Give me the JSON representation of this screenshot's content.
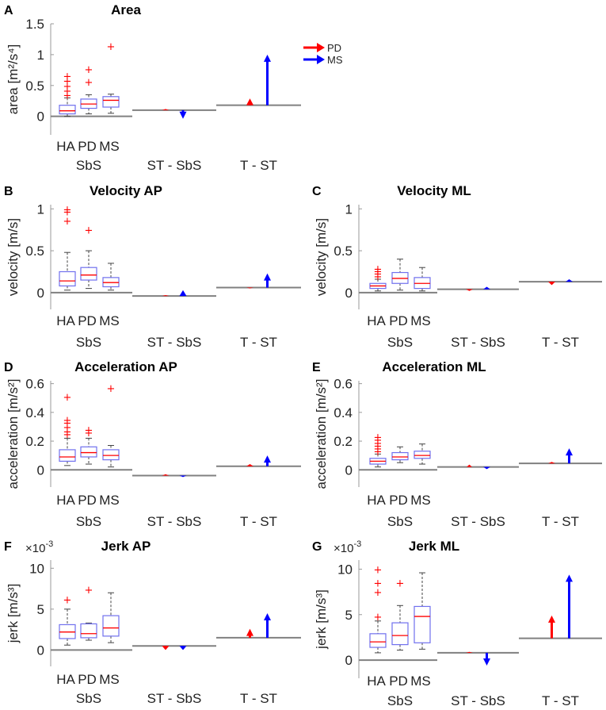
{
  "legend": [
    {
      "label": "PD",
      "color": "#ff0000"
    },
    {
      "label": "MS",
      "color": "#0000ff"
    }
  ],
  "colors": {
    "pd": "#ff0000",
    "ms": "#0000ff",
    "box": "#7070ee",
    "median": "#ff0000",
    "whisker": "#444444",
    "base": "#808080"
  },
  "chart_data": [
    {
      "panel": "A",
      "title": "Area",
      "type": "box+arrow",
      "ylabel": "area [m²/s⁴]",
      "ylim": [
        -0.3,
        1.5
      ],
      "yticks": [
        0,
        0.5,
        1,
        1.5
      ],
      "ytick_labels": [
        "0",
        "0.5",
        "1",
        "1.5"
      ],
      "sci_label": "",
      "groups": [
        "HA",
        "PD",
        "MS"
      ],
      "group_labels": [
        "SbS",
        "ST - SbS",
        "T - ST"
      ],
      "boxes": [
        {
          "name": "HA",
          "wlo": 0.0,
          "q1": 0.04,
          "med": 0.09,
          "q3": 0.18,
          "whi": 0.3,
          "outliers": [
            0.35,
            0.42,
            0.5,
            0.58,
            0.66
          ]
        },
        {
          "name": "PD",
          "wlo": 0.04,
          "q1": 0.13,
          "med": 0.2,
          "q3": 0.28,
          "whi": 0.35,
          "outliers": [
            0.56,
            0.77
          ]
        },
        {
          "name": "MS",
          "wlo": 0.05,
          "q1": 0.15,
          "med": 0.26,
          "q3": 0.32,
          "whi": 0.36,
          "outliers": [
            1.14
          ]
        }
      ],
      "levels": {
        "st": 0.1,
        "t": 0.18
      },
      "st_arrows": {
        "pd": 0.12,
        "ms": -0.04
      },
      "t_arrows": {
        "pd": 0.29,
        "ms": 1.0
      }
    },
    {
      "panel": "B",
      "title": "Velocity AP",
      "type": "box+arrow",
      "ylabel": "velocity [m/s]",
      "ylim": [
        -0.2,
        1.05
      ],
      "yticks": [
        0,
        0.5,
        1
      ],
      "ytick_labels": [
        "0",
        "0.5",
        "1"
      ],
      "sci_label": "",
      "groups": [
        "HA",
        "PD",
        "MS"
      ],
      "group_labels": [
        "SbS",
        "ST - SbS",
        "T - ST"
      ],
      "boxes": [
        {
          "name": "HA",
          "wlo": 0.03,
          "q1": 0.08,
          "med": 0.14,
          "q3": 0.25,
          "whi": 0.48,
          "outliers": [
            0.86,
            0.97,
            1.0
          ]
        },
        {
          "name": "PD",
          "wlo": 0.05,
          "q1": 0.15,
          "med": 0.21,
          "q3": 0.3,
          "whi": 0.5,
          "outliers": [
            0.75
          ]
        },
        {
          "name": "MS",
          "wlo": 0.03,
          "q1": 0.07,
          "med": 0.12,
          "q3": 0.18,
          "whi": 0.35,
          "outliers": []
        }
      ],
      "levels": {
        "st": -0.04,
        "t": 0.06
      },
      "st_arrows": {
        "pd": -0.03,
        "ms": 0.03
      },
      "t_arrows": {
        "pd": 0.05,
        "ms": 0.23
      }
    },
    {
      "panel": "C",
      "title": "Velocity ML",
      "type": "box+arrow",
      "ylabel": "velocity [m/s]",
      "ylim": [
        -0.2,
        1.05
      ],
      "yticks": [
        0,
        0.5,
        1
      ],
      "ytick_labels": [
        "0",
        "0.5",
        "1"
      ],
      "sci_label": "",
      "groups": [
        "HA",
        "PD",
        "MS"
      ],
      "group_labels": [
        "SbS",
        "ST - SbS",
        "T - ST"
      ],
      "boxes": [
        {
          "name": "HA",
          "wlo": 0.02,
          "q1": 0.05,
          "med": 0.08,
          "q3": 0.11,
          "whi": 0.16,
          "outliers": [
            0.2,
            0.23,
            0.26,
            0.29
          ]
        },
        {
          "name": "PD",
          "wlo": 0.03,
          "q1": 0.11,
          "med": 0.17,
          "q3": 0.24,
          "whi": 0.4,
          "outliers": []
        },
        {
          "name": "MS",
          "wlo": 0.02,
          "q1": 0.05,
          "med": 0.11,
          "q3": 0.18,
          "whi": 0.3,
          "outliers": []
        }
      ],
      "levels": {
        "st": 0.04,
        "t": 0.13
      },
      "st_arrows": {
        "pd": 0.02,
        "ms": 0.07
      },
      "t_arrows": {
        "pd": 0.09,
        "ms": 0.16
      }
    },
    {
      "panel": "D",
      "title": "Acceleration AP",
      "type": "box+arrow",
      "ylabel": "acceleration [m/s²]",
      "ylim": [
        -0.12,
        0.62
      ],
      "yticks": [
        0,
        0.2,
        0.4,
        0.6
      ],
      "ytick_labels": [
        "0",
        "0.2",
        "0.4",
        "0.6"
      ],
      "sci_label": "",
      "groups": [
        "HA",
        "PD",
        "MS"
      ],
      "group_labels": [
        "SbS",
        "ST - SbS",
        "T - ST"
      ],
      "boxes": [
        {
          "name": "HA",
          "wlo": 0.03,
          "q1": 0.06,
          "med": 0.09,
          "q3": 0.14,
          "whi": 0.22,
          "outliers": [
            0.25,
            0.27,
            0.3,
            0.33,
            0.35,
            0.51
          ]
        },
        {
          "name": "PD",
          "wlo": 0.04,
          "q1": 0.09,
          "med": 0.12,
          "q3": 0.16,
          "whi": 0.22,
          "outliers": [
            0.26,
            0.28
          ]
        },
        {
          "name": "MS",
          "wlo": 0.02,
          "q1": 0.07,
          "med": 0.1,
          "q3": 0.14,
          "whi": 0.17,
          "outliers": [
            0.57
          ]
        }
      ],
      "levels": {
        "st": -0.04,
        "t": 0.025
      },
      "st_arrows": {
        "pd": -0.03,
        "ms": -0.05
      },
      "t_arrows": {
        "pd": 0.04,
        "ms": 0.1
      }
    },
    {
      "panel": "E",
      "title": "Acceleration ML",
      "type": "box+arrow",
      "ylabel": "acceleration [m/s²]",
      "ylim": [
        -0.12,
        0.62
      ],
      "yticks": [
        0,
        0.2,
        0.4,
        0.6
      ],
      "ytick_labels": [
        "0",
        "0.2",
        "0.4",
        "0.6"
      ],
      "sci_label": "",
      "groups": [
        "HA",
        "PD",
        "MS"
      ],
      "group_labels": [
        "SbS",
        "ST - SbS",
        "T - ST"
      ],
      "boxes": [
        {
          "name": "HA",
          "wlo": 0.02,
          "q1": 0.04,
          "med": 0.06,
          "q3": 0.08,
          "whi": 0.11,
          "outliers": [
            0.13,
            0.15,
            0.17,
            0.19,
            0.21,
            0.23
          ]
        },
        {
          "name": "PD",
          "wlo": 0.05,
          "q1": 0.07,
          "med": 0.09,
          "q3": 0.12,
          "whi": 0.16,
          "outliers": []
        },
        {
          "name": "MS",
          "wlo": 0.04,
          "q1": 0.08,
          "med": 0.1,
          "q3": 0.13,
          "whi": 0.18,
          "outliers": []
        }
      ],
      "levels": {
        "st": 0.02,
        "t": 0.045
      },
      "st_arrows": {
        "pd": 0.02,
        "ms": 0.005
      },
      "t_arrows": {
        "pd": 0.055,
        "ms": 0.15
      }
    },
    {
      "panel": "F",
      "title": "Jerk AP",
      "type": "box+arrow",
      "ylabel": "jerk [m/s³]",
      "ylim": [
        -2,
        11
      ],
      "yticks": [
        0,
        5,
        10
      ],
      "ytick_labels": [
        "0",
        "5",
        "10"
      ],
      "sci_label": "×10",
      "sci_exp": "-3",
      "groups": [
        "HA",
        "PD",
        "MS"
      ],
      "group_labels": [
        "SbS",
        "ST - SbS",
        "T - ST"
      ],
      "boxes": [
        {
          "name": "HA",
          "wlo": 0.6,
          "q1": 1.4,
          "med": 2.2,
          "q3": 3.1,
          "whi": 5.0,
          "outliers": [
            6.2
          ]
        },
        {
          "name": "PD",
          "wlo": 1.2,
          "q1": 1.5,
          "med": 2.0,
          "q3": 3.2,
          "whi": 3.3,
          "outliers": [
            7.4
          ]
        },
        {
          "name": "MS",
          "wlo": 0.9,
          "q1": 1.7,
          "med": 2.7,
          "q3": 4.2,
          "whi": 7.0,
          "outliers": []
        }
      ],
      "levels": {
        "st": 0.5,
        "t": 1.5
      },
      "st_arrows": {
        "pd": 0.0,
        "ms": 0.0
      },
      "t_arrows": {
        "pd": 2.6,
        "ms": 4.5
      }
    },
    {
      "panel": "G",
      "title": "Jerk ML",
      "type": "box+arrow",
      "ylabel": "jerk [m/s³]",
      "ylim": [
        -2,
        11
      ],
      "yticks": [
        0,
        5,
        10
      ],
      "ytick_labels": [
        "0",
        "5",
        "10"
      ],
      "sci_label": "×10",
      "sci_exp": "-3",
      "groups": [
        "HA",
        "PD",
        "MS"
      ],
      "group_labels": [
        "SbS",
        "ST - SbS",
        "T - ST"
      ],
      "boxes": [
        {
          "name": "HA",
          "wlo": 0.8,
          "q1": 1.4,
          "med": 2.0,
          "q3": 2.9,
          "whi": 4.3,
          "outliers": [
            4.8,
            7.5,
            8.5,
            10.0
          ]
        },
        {
          "name": "PD",
          "wlo": 1.1,
          "q1": 1.7,
          "med": 2.7,
          "q3": 4.1,
          "whi": 6.0,
          "outliers": [
            8.5
          ]
        },
        {
          "name": "MS",
          "wlo": 1.2,
          "q1": 1.9,
          "med": 4.8,
          "q3": 5.9,
          "whi": 9.6,
          "outliers": []
        }
      ],
      "levels": {
        "st": 0.8,
        "t": 2.4
      },
      "st_arrows": {
        "pd": 0.9,
        "ms": -0.6
      },
      "t_arrows": {
        "pd": 4.9,
        "ms": 9.4
      }
    }
  ]
}
